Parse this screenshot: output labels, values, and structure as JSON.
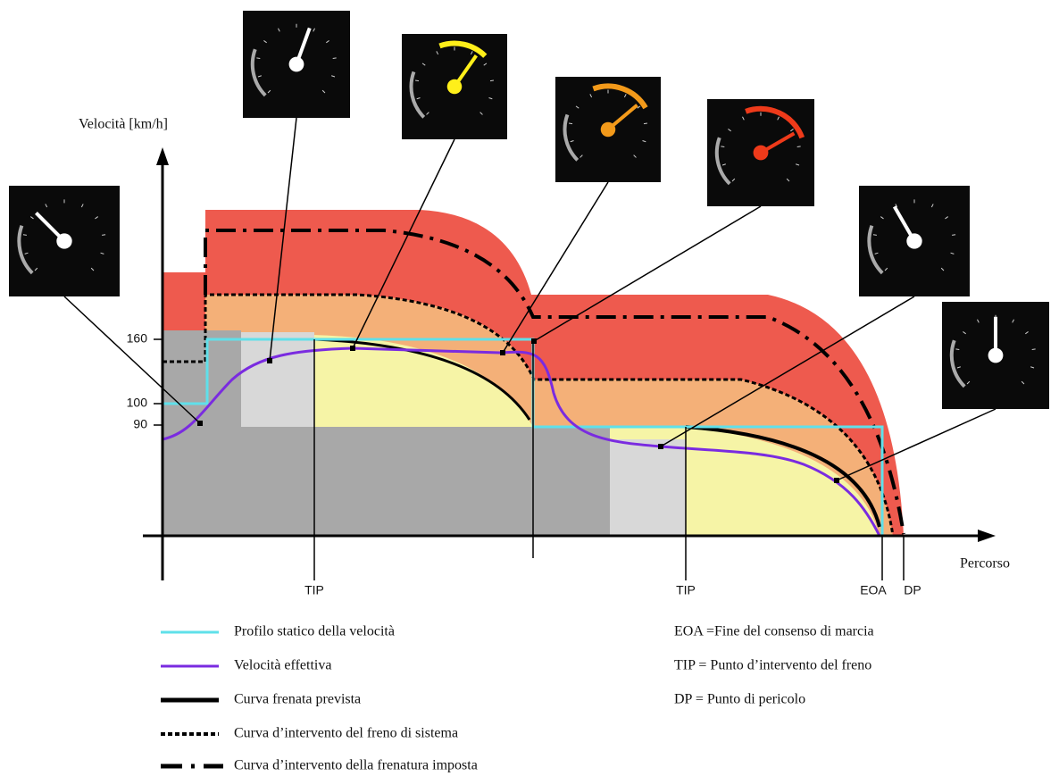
{
  "axes": {
    "y_label": "Velocità [km/h]",
    "x_label": "Percorso",
    "y_ticks": [
      "160",
      "100",
      "90"
    ],
    "x_markers": [
      "TIP",
      "TIP",
      "EOA",
      "DP"
    ]
  },
  "legend": [
    "Profilo statico della velocità",
    "Velocità effettiva",
    "Curva frenata prevista",
    "Curva d’intervento del freno di sistema",
    "Curva d’intervento della frenatura imposta"
  ],
  "definitions": [
    "EOA =Fine del consenso di marcia",
    "TIP = Punto d’intervento del freno",
    "DP = Punto di pericolo"
  ]
}
